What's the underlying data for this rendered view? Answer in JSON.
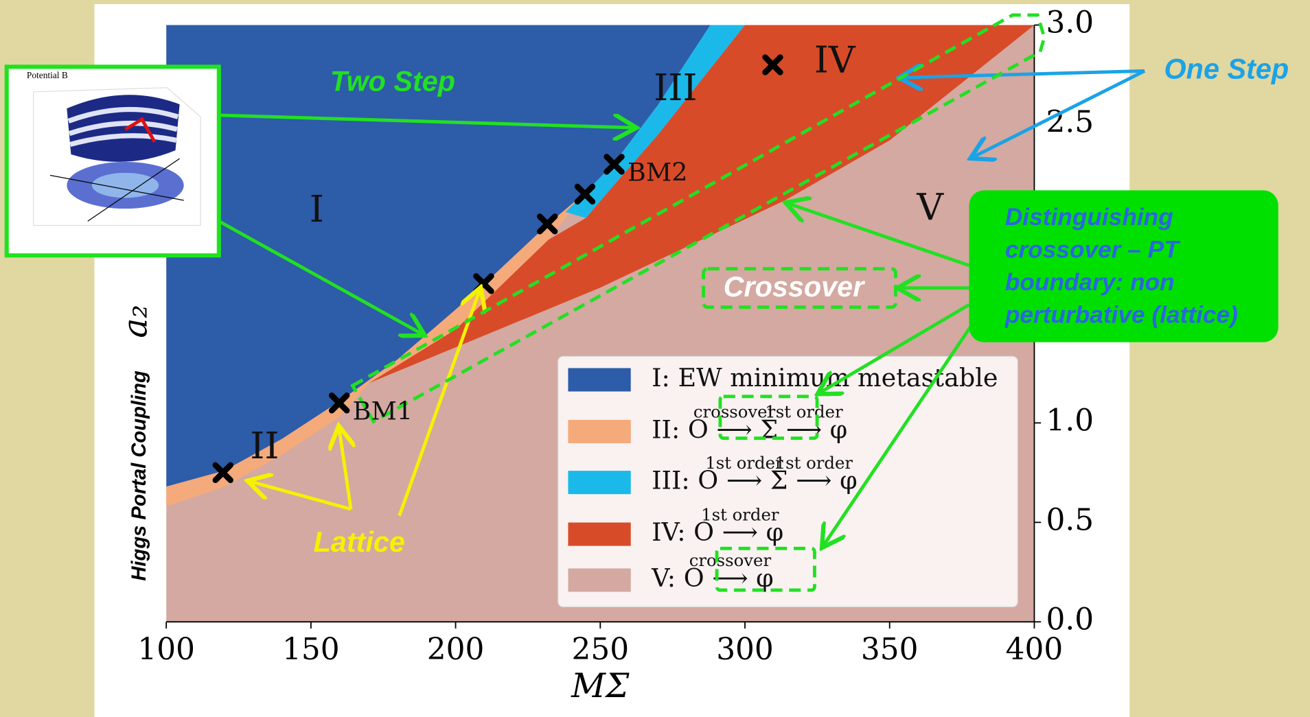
{
  "chart_data": {
    "type": "area",
    "x_label": "MΣ",
    "y_label": "a₂",
    "xlim": [
      100,
      400
    ],
    "ylim": [
      0,
      3
    ],
    "xticks": [
      100,
      150,
      200,
      250,
      300,
      350,
      400
    ],
    "yticks": [
      {
        "value": 0,
        "label": "0.0"
      },
      {
        "value": 0.5,
        "label": "0.5"
      },
      {
        "value": 1,
        "label": "1.0"
      },
      {
        "value": 2.5,
        "label": "2.5"
      },
      {
        "value": 3,
        "label": "3.0"
      }
    ],
    "y_axis_side": "right",
    "series": [
      {
        "name": "I: EW minimum metastable",
        "color": "#2d5ca8",
        "x": [
          100,
          120,
          140,
          160,
          180,
          200,
          210,
          232,
          245,
          255,
          270,
          288,
          100
        ],
        "y": [
          0.68,
          0.76,
          0.92,
          1.11,
          1.32,
          1.57,
          1.7,
          2.0,
          2.16,
          2.31,
          2.6,
          3.0,
          3.0
        ]
      },
      {
        "name": "II: O ⟶ Σ ⟶ φ",
        "arrow_labels": [
          "crossover",
          "1st order"
        ],
        "color": "#f5aa7b",
        "x": [
          100,
          120,
          140,
          160,
          180,
          200,
          210,
          232,
          245,
          232,
          200,
          170,
          160,
          140,
          120,
          100
        ],
        "y": [
          0.68,
          0.76,
          0.92,
          1.11,
          1.32,
          1.57,
          1.7,
          2.0,
          2.16,
          1.92,
          1.47,
          1.2,
          1.03,
          0.84,
          0.68,
          0.58
        ]
      },
      {
        "name": "III: O ⟶ Σ ⟶ φ",
        "arrow_labels": [
          "1st order",
          "1st order"
        ],
        "color": "#1bb9e9",
        "x": [
          238,
          245,
          255,
          270,
          288,
          300,
          270,
          255,
          245
        ],
        "y": [
          2.06,
          2.16,
          2.31,
          2.6,
          3.0,
          3.0,
          2.45,
          2.2,
          2.03
        ]
      },
      {
        "name": "IV: O ⟶ φ",
        "arrow_labels": [
          "1st order"
        ],
        "color": "#d84b29",
        "x": [
          170,
          200,
          232,
          245,
          255,
          270,
          300,
          400,
          350,
          314,
          250,
          200
        ],
        "y": [
          1.2,
          1.47,
          1.92,
          2.03,
          2.2,
          2.45,
          3.0,
          3.0,
          2.42,
          2.12,
          1.68,
          1.38
        ]
      },
      {
        "name": "V: O ⟶ φ",
        "arrow_labels": [
          "crossover"
        ],
        "color": "#d4a9a1",
        "x": [
          100,
          400,
          400,
          100
        ],
        "y": [
          0,
          0,
          3,
          3
        ]
      }
    ],
    "region_labels": [
      {
        "text": "I",
        "x": 152,
        "y": 2.06
      },
      {
        "text": "II",
        "x": 134,
        "y": 0.87
      },
      {
        "text": "III",
        "x": 276,
        "y": 2.67
      },
      {
        "text": "IV",
        "x": 331,
        "y": 2.81
      },
      {
        "text": "V",
        "x": 364,
        "y": 2.07
      }
    ],
    "benchmarks": {
      "x": [
        119.6,
        159.8,
        209.7,
        231.7,
        244.7,
        254.8,
        309.6
      ],
      "y": [
        0.75,
        1.1,
        1.7,
        2.0,
        2.15,
        2.3,
        2.8
      ],
      "labels": [
        null,
        "BM1",
        null,
        null,
        null,
        "BM2",
        null
      ]
    },
    "annotations": {
      "side_label": "Higgs Portal Coupling",
      "two_step": "Two Step",
      "one_step": "One Step",
      "lattice": "Lattice",
      "crossover": "Crossover",
      "distinguishing": [
        "Distinguishing",
        "crossover – PT",
        "boundary: non",
        "perturbative (lattice)"
      ],
      "inset_title": "Potential B"
    }
  }
}
